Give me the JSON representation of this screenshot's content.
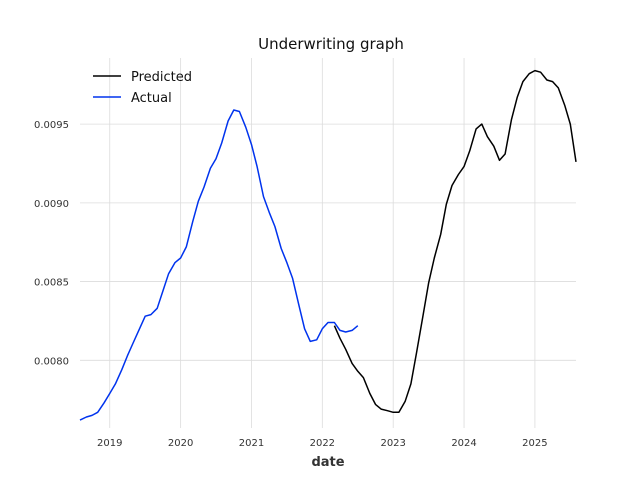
{
  "chart_data": {
    "type": "line",
    "title": "Underwriting graph",
    "xlabel": "date",
    "ylabel": "",
    "xlim": [
      2018.58,
      2025.58
    ],
    "ylim": [
      0.00757,
      0.00992
    ],
    "x_ticks": [
      2019,
      2020,
      2021,
      2022,
      2023,
      2024,
      2025
    ],
    "x_tick_labels": [
      "2019",
      "2020",
      "2021",
      "2022",
      "2023",
      "2024",
      "2025"
    ],
    "y_ticks": [
      0.008,
      0.0085,
      0.009,
      0.0095
    ],
    "y_tick_labels": [
      "0.0080",
      "0.0085",
      "0.0090",
      "0.0095"
    ],
    "grid": true,
    "legend_position": "top-left",
    "series": [
      {
        "name": "Predicted",
        "color": "#000000",
        "x": [
          2022.17,
          2022.25,
          2022.33,
          2022.42,
          2022.5,
          2022.58,
          2022.67,
          2022.75,
          2022.83,
          2022.92,
          2023.0,
          2023.08,
          2023.17,
          2023.25,
          2023.33,
          2023.42,
          2023.5,
          2023.58,
          2023.67,
          2023.75,
          2023.83,
          2023.92,
          2024.0,
          2024.08,
          2024.17,
          2024.25,
          2024.33,
          2024.42,
          2024.5,
          2024.58,
          2024.67,
          2024.75,
          2024.83,
          2024.92,
          2025.0,
          2025.08,
          2025.17,
          2025.25,
          2025.33,
          2025.42,
          2025.5,
          2025.58
        ],
        "y": [
          0.00822,
          0.00814,
          0.00807,
          0.00798,
          0.00793,
          0.00789,
          0.00779,
          0.00772,
          0.00769,
          0.00768,
          0.00767,
          0.00767,
          0.00774,
          0.00785,
          0.00805,
          0.00828,
          0.00849,
          0.00865,
          0.0088,
          0.00899,
          0.00911,
          0.00918,
          0.00923,
          0.00933,
          0.00947,
          0.0095,
          0.00942,
          0.00936,
          0.00927,
          0.00931,
          0.00953,
          0.00967,
          0.00977,
          0.00982,
          0.00984,
          0.00983,
          0.00978,
          0.00977,
          0.00973,
          0.00962,
          0.0095,
          0.00926
        ]
      },
      {
        "name": "Actual",
        "color": "#0033ee",
        "x": [
          2018.58,
          2018.67,
          2018.75,
          2018.83,
          2018.92,
          2019.0,
          2019.08,
          2019.17,
          2019.25,
          2019.33,
          2019.42,
          2019.5,
          2019.58,
          2019.67,
          2019.75,
          2019.83,
          2019.92,
          2020.0,
          2020.08,
          2020.17,
          2020.25,
          2020.33,
          2020.42,
          2020.5,
          2020.58,
          2020.67,
          2020.75,
          2020.83,
          2020.92,
          2021.0,
          2021.08,
          2021.17,
          2021.25,
          2021.33,
          2021.42,
          2021.5,
          2021.58,
          2021.67,
          2021.75,
          2021.83,
          2021.92,
          2022.0,
          2022.08,
          2022.17,
          2022.25,
          2022.33,
          2022.42,
          2022.5
        ],
        "y": [
          0.00762,
          0.00764,
          0.00765,
          0.00767,
          0.00773,
          0.00779,
          0.00785,
          0.00794,
          0.00803,
          0.00811,
          0.0082,
          0.00828,
          0.00829,
          0.00833,
          0.00844,
          0.00855,
          0.00862,
          0.00865,
          0.00872,
          0.00888,
          0.00901,
          0.0091,
          0.00922,
          0.00928,
          0.00938,
          0.00952,
          0.00959,
          0.00958,
          0.00948,
          0.00937,
          0.00923,
          0.00904,
          0.00894,
          0.00885,
          0.00871,
          0.00862,
          0.00852,
          0.00835,
          0.0082,
          0.00812,
          0.00813,
          0.0082,
          0.00824,
          0.00824,
          0.00819,
          0.00818,
          0.00819,
          0.00822
        ]
      }
    ]
  }
}
